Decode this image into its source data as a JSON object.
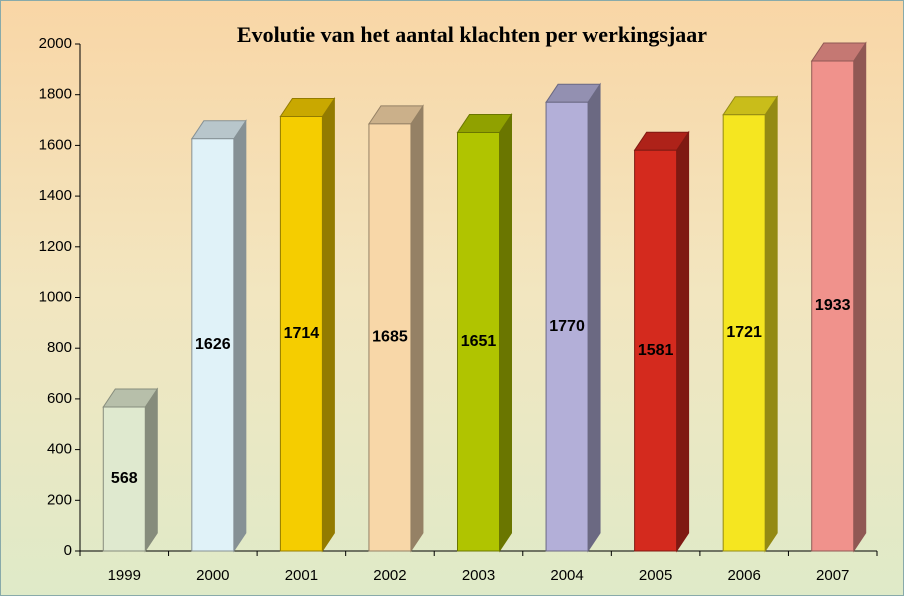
{
  "chart_data": {
    "type": "bar3d",
    "title": "Evolutie van het aantal klachten per werkingsjaar",
    "categories": [
      "1999",
      "2000",
      "2001",
      "2002",
      "2003",
      "2004",
      "2005",
      "2006",
      "2007"
    ],
    "values": [
      568,
      1626,
      1714,
      1685,
      1651,
      1770,
      1581,
      1721,
      1933
    ],
    "colors": [
      "#dfe9cf",
      "#e0f2f8",
      "#f5cd00",
      "#f8d7a8",
      "#b0c400",
      "#b3afd8",
      "#d42a1e",
      "#f5e620",
      "#f0928c"
    ],
    "ylim": [
      0,
      2000
    ],
    "yticks": [
      0,
      200,
      400,
      600,
      800,
      1000,
      1200,
      1400,
      1600,
      1800,
      2000
    ],
    "grid": false
  }
}
